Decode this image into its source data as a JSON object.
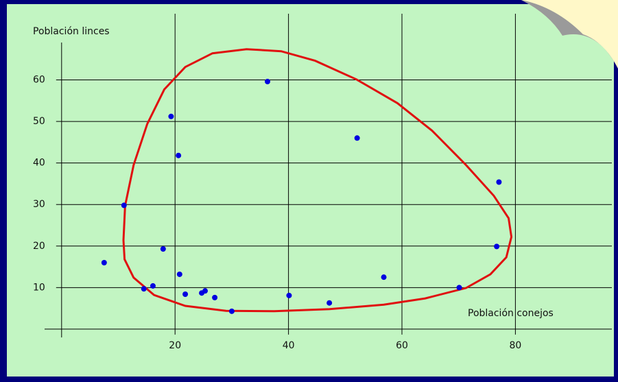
{
  "chart_data": {
    "type": "scatter",
    "x_label": "Población conejos",
    "y_label": "Población linces",
    "xlim": [
      -3,
      97
    ],
    "ylim": [
      -2,
      69
    ],
    "xticks": [
      20,
      40,
      60,
      80
    ],
    "yticks": [
      10,
      20,
      30,
      40,
      50,
      60
    ],
    "grid": true,
    "series": [
      {
        "type": "scatter",
        "color": "#0000e0",
        "x": [
          7.5,
          11.0,
          14.5,
          16.1,
          17.9,
          19.3,
          20.6,
          20.8,
          21.8,
          24.7,
          25.3,
          27.0,
          30.0,
          36.3,
          40.1,
          47.2,
          52.1,
          56.8,
          70.1,
          76.7,
          77.1
        ],
        "values": [
          16.0,
          29.8,
          9.7,
          10.4,
          19.3,
          51.2,
          41.8,
          13.2,
          8.4,
          8.7,
          9.2,
          7.6,
          4.3,
          59.6,
          8.1,
          6.3,
          46.0,
          12.5,
          10.0,
          19.9,
          35.4
        ]
      },
      {
        "type": "line",
        "color": "#e01010",
        "x": [
          10.9,
          11.2,
          12.7,
          15.1,
          18.1,
          21.8,
          26.6,
          32.6,
          38.7,
          44.7,
          52.0,
          59.2,
          65.3,
          71.3,
          76.2,
          78.8,
          79.3,
          78.4,
          75.6,
          71.3,
          64.1,
          56.8,
          47.2,
          37.5,
          29.0,
          21.8,
          16.3,
          12.7,
          11.1
        ],
        "values": [
          21.4,
          29.7,
          39.5,
          49.4,
          57.7,
          63.1,
          66.4,
          67.4,
          66.9,
          64.6,
          60.1,
          54.4,
          47.8,
          39.5,
          32.1,
          26.7,
          22.2,
          17.3,
          13.2,
          9.9,
          7.4,
          5.9,
          4.8,
          4.3,
          4.4,
          5.6,
          8.2,
          12.4,
          16.8
        ]
      }
    ]
  }
}
